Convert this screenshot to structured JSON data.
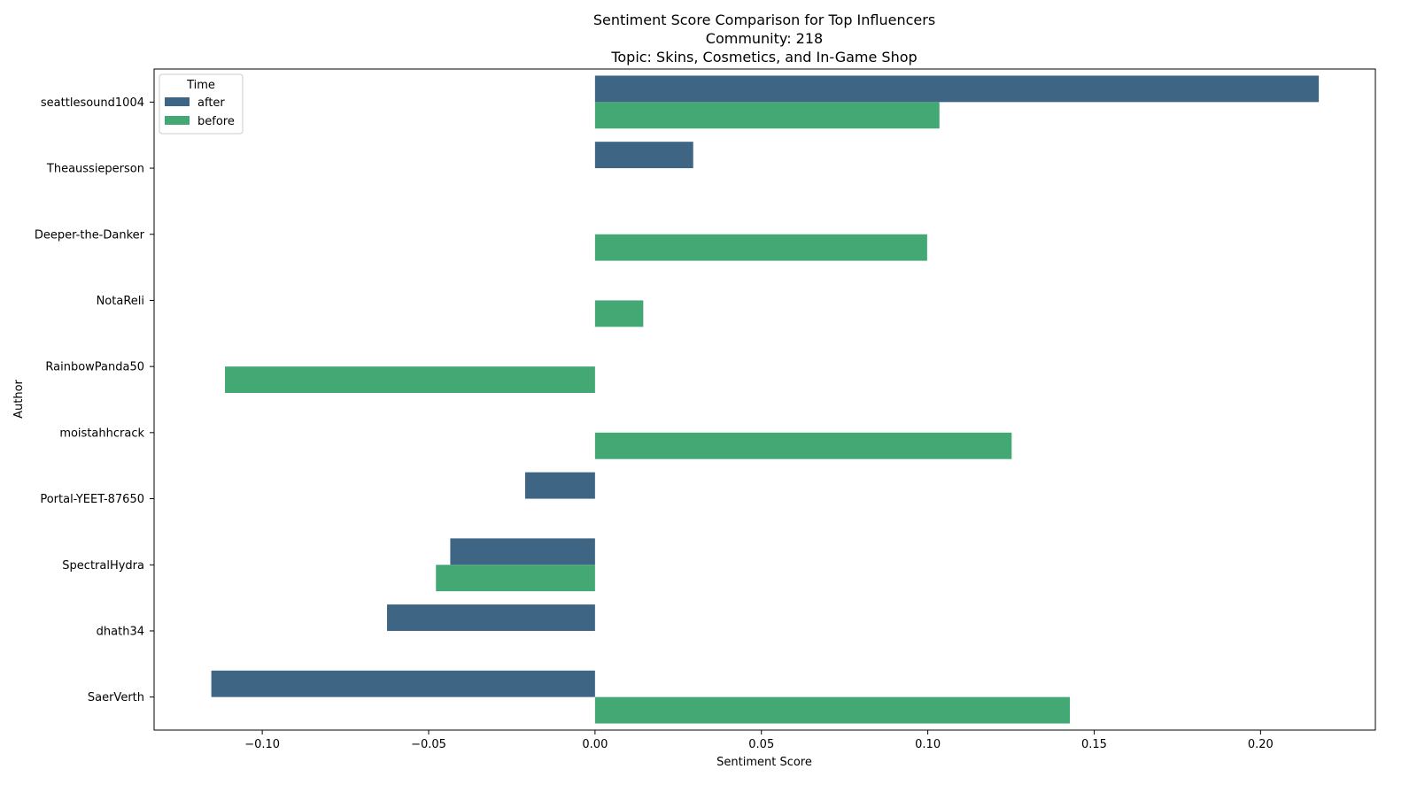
{
  "chart_data": {
    "type": "bar",
    "orientation": "horizontal",
    "title": "Sentiment Score Comparison for Top Influencers",
    "subtitle_lines": [
      "Community: 218",
      "Topic: Skins, Cosmetics, and In-Game Shop"
    ],
    "xlabel": "Sentiment Score",
    "ylabel": "Author",
    "xlim": [
      -0.1325,
      0.2345
    ],
    "xticks": [
      -0.1,
      -0.05,
      0.0,
      0.05,
      0.1,
      0.15,
      0.2
    ],
    "xtick_labels": [
      "−0.10",
      "−0.05",
      "0.00",
      "0.05",
      "0.10",
      "0.15",
      "0.20"
    ],
    "grid": false,
    "legend": {
      "title": "Time",
      "placement": "top-left"
    },
    "categories": [
      "seattlesound1004",
      "Theaussieperson",
      "Deeper-the-Danker",
      "NotaReli",
      "RainbowPanda50",
      "moistahhcrack",
      "Portal-YEET-87650",
      "SpectralHydra",
      "dhath34",
      "SaerVerth"
    ],
    "series": [
      {
        "name": "after",
        "color": "#3e6584",
        "values": [
          0.2175,
          0.0295,
          null,
          null,
          null,
          null,
          -0.021,
          -0.0435,
          -0.0625,
          -0.1153
        ]
      },
      {
        "name": "before",
        "color": "#44a874",
        "values": [
          0.1035,
          null,
          0.0998,
          0.0145,
          -0.1112,
          0.1252,
          null,
          -0.0478,
          null,
          0.1427
        ]
      }
    ]
  }
}
